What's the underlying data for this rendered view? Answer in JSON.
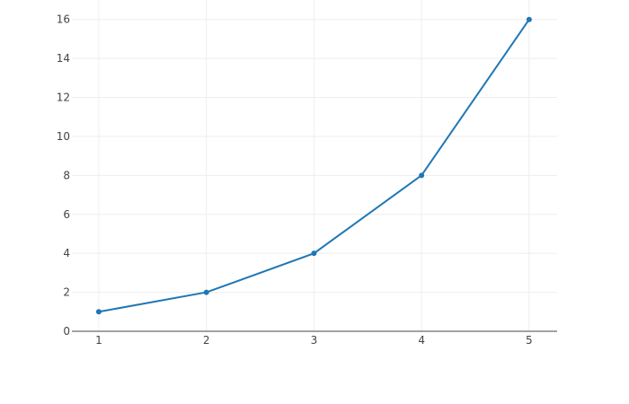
{
  "chart_data": {
    "type": "line",
    "x": [
      1,
      2,
      3,
      4,
      5
    ],
    "series": [
      {
        "values": [
          1,
          2,
          4,
          8,
          16
        ],
        "color": "#1f77b4",
        "mode": "lines+markers"
      }
    ],
    "xlim": [
      0.75,
      5.26
    ],
    "ylim": [
      0,
      17
    ],
    "xticks": [
      "1",
      "2",
      "3",
      "4",
      "5"
    ],
    "yticks": [
      "0",
      "2",
      "4",
      "6",
      "8",
      "10",
      "12",
      "14",
      "16"
    ],
    "grid": true,
    "title": "",
    "xlabel": "",
    "ylabel": ""
  }
}
